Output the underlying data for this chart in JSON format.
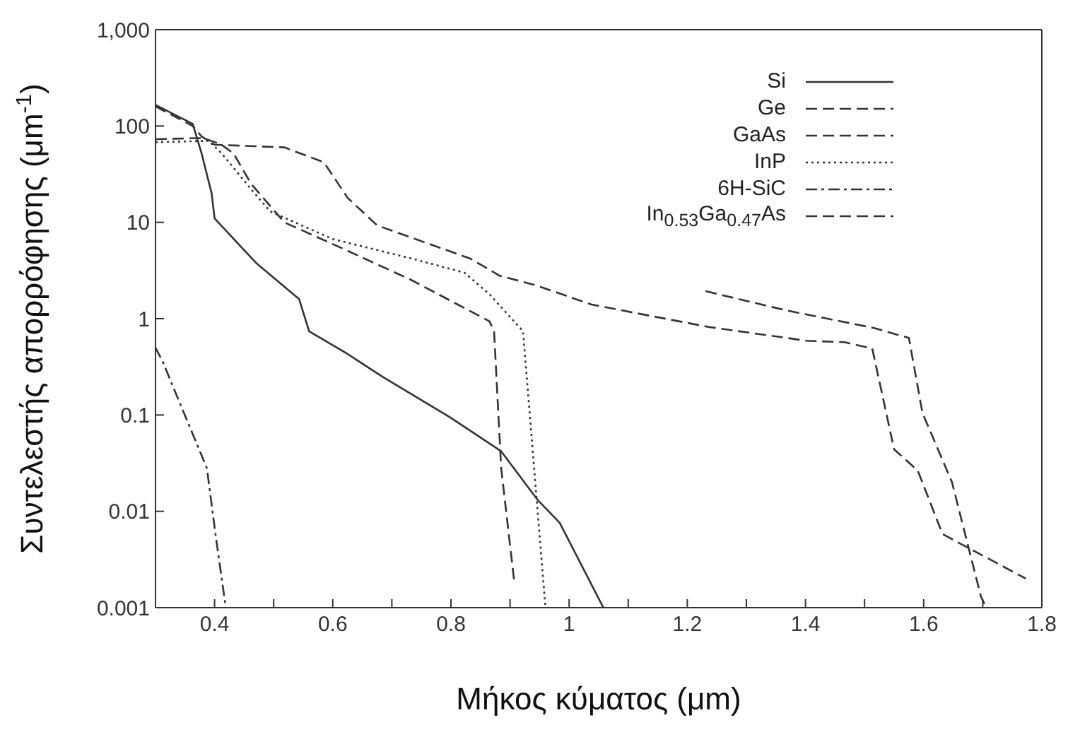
{
  "chart_data": {
    "type": "line",
    "xlabel": "Μήκος κύματος (μm)",
    "ylabel": "Συντελεστής απορρόφησης (μm$^{-1}$)",
    "xlim": [
      0.3,
      1.8
    ],
    "xticks": [
      0.4,
      {
        "value": 0.5,
        "label": null
      },
      0.6,
      {
        "value": 0.7,
        "label": null
      },
      0.8,
      {
        "value": 0.9,
        "label": null
      },
      1,
      {
        "value": 1.1,
        "label": null
      },
      1.2,
      {
        "value": 1.3,
        "label": null
      },
      1.4,
      {
        "value": 1.5,
        "label": null
      },
      1.6,
      {
        "value": 1.7,
        "label": null
      },
      1.8
    ],
    "ylim": [
      0.001,
      1000
    ],
    "yticks": [
      0.001,
      0.01,
      0.1,
      1,
      10,
      100,
      {
        "value": 1000,
        "label": "1,000"
      }
    ],
    "log": "y",
    "legend": "top right",
    "marker": "none",
    "series": [
      {
        "name": "Si",
        "color": "#333333",
        "line_style": "solid",
        "x": [
          0.3,
          0.363,
          0.378,
          0.395,
          0.4,
          0.47,
          0.543,
          0.56,
          0.625,
          0.684,
          0.798,
          0.885,
          0.946,
          0.984,
          1.058
        ],
        "values": [
          166,
          105,
          52,
          20,
          11,
          3.8,
          1.6,
          0.74,
          0.43,
          0.25,
          0.095,
          0.042,
          0.0133,
          0.0076,
          0.001
        ]
      },
      {
        "name": "Ge",
        "color": "#333333",
        "line_style": "dashed",
        "x": [
          0.3,
          0.363,
          0.378,
          0.4,
          0.518,
          0.585,
          0.625,
          0.675,
          0.833,
          0.882,
          0.946,
          1.038,
          1.236,
          1.402,
          1.466,
          1.513,
          1.55,
          1.59,
          1.632,
          1.773
        ],
        "values": [
          160,
          100,
          78,
          64,
          60,
          42,
          18,
          9.3,
          4.2,
          2.8,
          2.2,
          1.4,
          0.82,
          0.59,
          0.57,
          0.49,
          0.044,
          0.0265,
          0.0058,
          0.002
        ]
      },
      {
        "name": "GaAs",
        "color": "#333333",
        "line_style": "dashed",
        "x": [
          0.3,
          0.38,
          0.41,
          0.432,
          0.462,
          0.518,
          0.618,
          0.734,
          0.865,
          0.873,
          0.885,
          0.907
        ],
        "values": [
          73,
          75,
          65,
          52,
          25,
          10,
          5.3,
          2.5,
          0.94,
          0.74,
          0.028,
          0.0019
        ]
      },
      {
        "name": "InP",
        "color": "#333333",
        "line_style": "dotted",
        "x": [
          0.3,
          0.39,
          0.412,
          0.462,
          0.494,
          0.6,
          0.734,
          0.823,
          0.865,
          0.922,
          0.944,
          0.96
        ],
        "values": [
          68,
          70,
          52,
          22,
          13,
          6.7,
          4.2,
          3.0,
          1.8,
          0.74,
          0.016,
          0.001
        ]
      },
      {
        "name": "6H-SiC",
        "color": "#333333",
        "line_style": "dashdot",
        "x": [
          0.3,
          0.312,
          0.387,
          0.402,
          0.419
        ],
        "values": [
          0.5,
          0.36,
          0.028,
          0.0055,
          0.001
        ]
      },
      {
        "name": "In$_{0.53}$Ga$_{0.47}$As",
        "color": "#333333",
        "line_style": "dashed",
        "x": [
          1.231,
          1.367,
          1.516,
          1.575,
          1.598,
          1.648,
          1.697,
          1.706
        ],
        "values": [
          1.93,
          1.22,
          0.8,
          0.63,
          0.105,
          0.02,
          0.0013,
          0.001
        ]
      }
    ]
  }
}
